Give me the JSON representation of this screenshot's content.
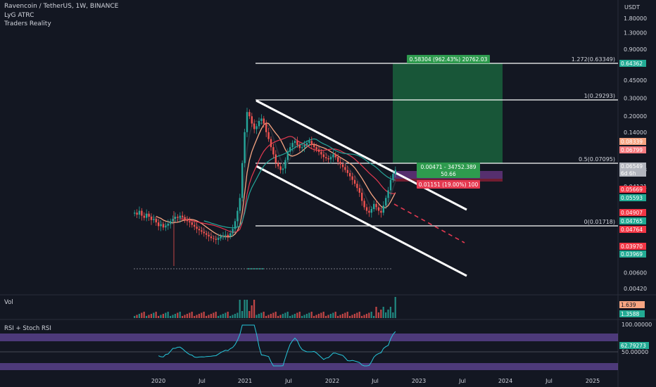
{
  "header": {
    "symbol": "Ravencoin / TetherUS, 1W, BINANCE",
    "indicator1": "LyG ATRC",
    "indicator2": "Traders Reality"
  },
  "axis": {
    "currency": "USDT",
    "price_ticks": [
      "1.80000",
      "1.30000",
      "0.90000",
      "0.45000",
      "0.30000",
      "0.20000",
      "0.14000",
      "0.06058",
      "0.04131",
      "0.00600",
      "0.00420"
    ],
    "x_ticks": [
      "2020",
      "Jul",
      "2021",
      "Jul",
      "2022",
      "Jul",
      "2023",
      "Jul",
      "2024",
      "Jul",
      "2025"
    ]
  },
  "price_tags": [
    {
      "text": "0.64362",
      "color": "#22ab94"
    },
    {
      "text": "0.08339",
      "color": "#f7a582"
    },
    {
      "text": "0.06799",
      "color": "#f77c80"
    },
    {
      "text": "0.06549",
      "color": "#b2b5be"
    },
    {
      "text": "6d 6h",
      "color": "#b2b5be"
    },
    {
      "text": "0.05669",
      "color": "#f23645"
    },
    {
      "text": "0.05593",
      "color": "#22ab94"
    },
    {
      "text": "0.04907",
      "color": "#f23645"
    },
    {
      "text": "0.04765",
      "color": "#22ab94"
    },
    {
      "text": "0.04764",
      "color": "#f23645"
    },
    {
      "text": "0.03970",
      "color": "#f23645"
    },
    {
      "text": "0.03969",
      "color": "#22ab94"
    }
  ],
  "fib_levels": [
    {
      "label": "1.272(0.63349)",
      "value": 0.63349
    },
    {
      "label": "1(0.29293)",
      "value": 0.29293
    },
    {
      "label": "0.5(0.07095)",
      "value": 0.07095
    },
    {
      "label": "0(0.01718)",
      "value": 0.01718
    }
  ],
  "position": {
    "target_label": "0.58304 (962.43%) 20762.03",
    "entry_label_1": "0.00471 - 34752.389",
    "entry_label_2": "50.66",
    "stop_label": "0.01151 (19.00%) 100"
  },
  "volume_pane": {
    "title": "Vol",
    "tag1": "1.639",
    "tag2": "1.3588"
  },
  "rsi_pane": {
    "title": "RSI + Stoch RSI",
    "level_high": "100.00000",
    "level_mid": "50.00000",
    "value_tag": "62.79273"
  },
  "chart_data": {
    "type": "candlestick",
    "symbol": "RVN/USDT",
    "interval": "1W",
    "price_scale": "log",
    "price_range": [
      0.0042,
      2.4
    ],
    "weekly_close": [
      0.023,
      0.022,
      0.024,
      0.0215,
      0.0205,
      0.0225,
      0.021,
      0.0195,
      0.02,
      0.0185,
      0.017,
      0.0178,
      0.0165,
      0.0172,
      0.018,
      0.019,
      0.02,
      0.021,
      0.0205,
      0.0215,
      0.0208,
      0.0198,
      0.019,
      0.0185,
      0.0175,
      0.0168,
      0.016,
      0.0155,
      0.015,
      0.0145,
      0.014,
      0.0135,
      0.013,
      0.0128,
      0.0125,
      0.013,
      0.0135,
      0.0138,
      0.014,
      0.0135,
      0.0145,
      0.016,
      0.019,
      0.024,
      0.032,
      0.07,
      0.14,
      0.22,
      0.2,
      0.17,
      0.15,
      0.16,
      0.18,
      0.19,
      0.17,
      0.14,
      0.12,
      0.1,
      0.085,
      0.07,
      0.065,
      0.06,
      0.062,
      0.075,
      0.09,
      0.1,
      0.11,
      0.115,
      0.105,
      0.098,
      0.1,
      0.105,
      0.11,
      0.115,
      0.105,
      0.1,
      0.095,
      0.09,
      0.085,
      0.08,
      0.078,
      0.076,
      0.08,
      0.085,
      0.08,
      0.072,
      0.068,
      0.064,
      0.06,
      0.056,
      0.052,
      0.048,
      0.044,
      0.04,
      0.036,
      0.03,
      0.026,
      0.024,
      0.023,
      0.025,
      0.028,
      0.026,
      0.024,
      0.023,
      0.027,
      0.032,
      0.038,
      0.048,
      0.055,
      0.06
    ],
    "fib_retracement": [
      0.01718,
      0.07095,
      0.29293,
      0.63349
    ],
    "rsi_last": 62.79273
  }
}
